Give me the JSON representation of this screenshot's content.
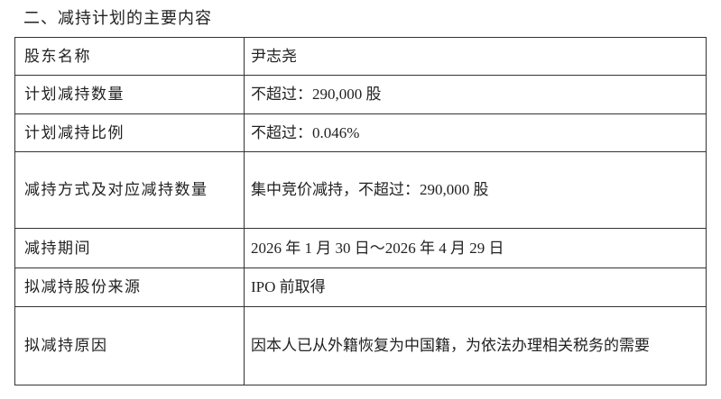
{
  "section_title": "二、减持计划的主要内容",
  "rows": [
    {
      "label": "股东名称",
      "value": "尹志尧"
    },
    {
      "label": "计划减持数量",
      "value": "不超过：290,000 股"
    },
    {
      "label": "计划减持比例",
      "value": "不超过：0.046%"
    },
    {
      "label": "减持方式及对应减持数量",
      "value": "集中竞价减持，不超过：290,000 股"
    },
    {
      "label": "减持期间",
      "value": "2026 年 1 月 30 日～2026 年 4 月 29 日"
    },
    {
      "label": "拟减持股份来源",
      "value": "IPO 前取得"
    },
    {
      "label": "拟减持原因",
      "value": "因本人已从外籍恢复为中国籍，为依法办理相关税务的需要"
    }
  ]
}
